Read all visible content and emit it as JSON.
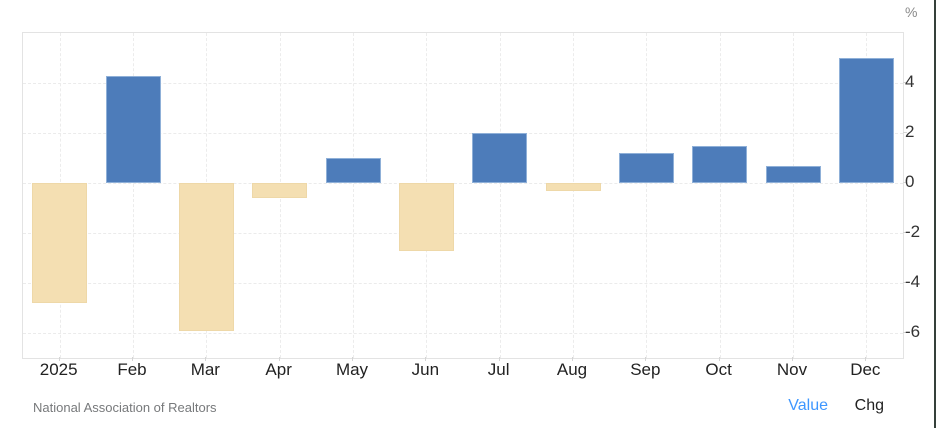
{
  "page": {
    "source": "National Association of Realtors",
    "toggle_value": "Value",
    "toggle_chg": "Chg",
    "unit_label": "%"
  },
  "colors": {
    "positive": "#4d7cba",
    "negative": "#f4dfb2",
    "grid": "#ebebeb",
    "link": "#3e97ff"
  },
  "chart_data": {
    "type": "bar",
    "title": "",
    "categories": [
      "2025",
      "Feb",
      "Mar",
      "Apr",
      "May",
      "Jun",
      "Jul",
      "Aug",
      "Sep",
      "Oct",
      "Nov",
      "Dec"
    ],
    "values": [
      -4.8,
      4.3,
      -5.9,
      -0.6,
      1.0,
      -2.7,
      2.0,
      -0.3,
      1.2,
      1.5,
      0.7,
      5.0
    ],
    "xlabel": "",
    "ylabel": "%",
    "ylim": [
      -7,
      6
    ],
    "yticks": [
      4,
      2,
      0,
      -2,
      -4,
      -6
    ],
    "grid": true,
    "legend": "none",
    "positive_color": "#4d7cba",
    "negative_color": "#f4dfb2"
  }
}
